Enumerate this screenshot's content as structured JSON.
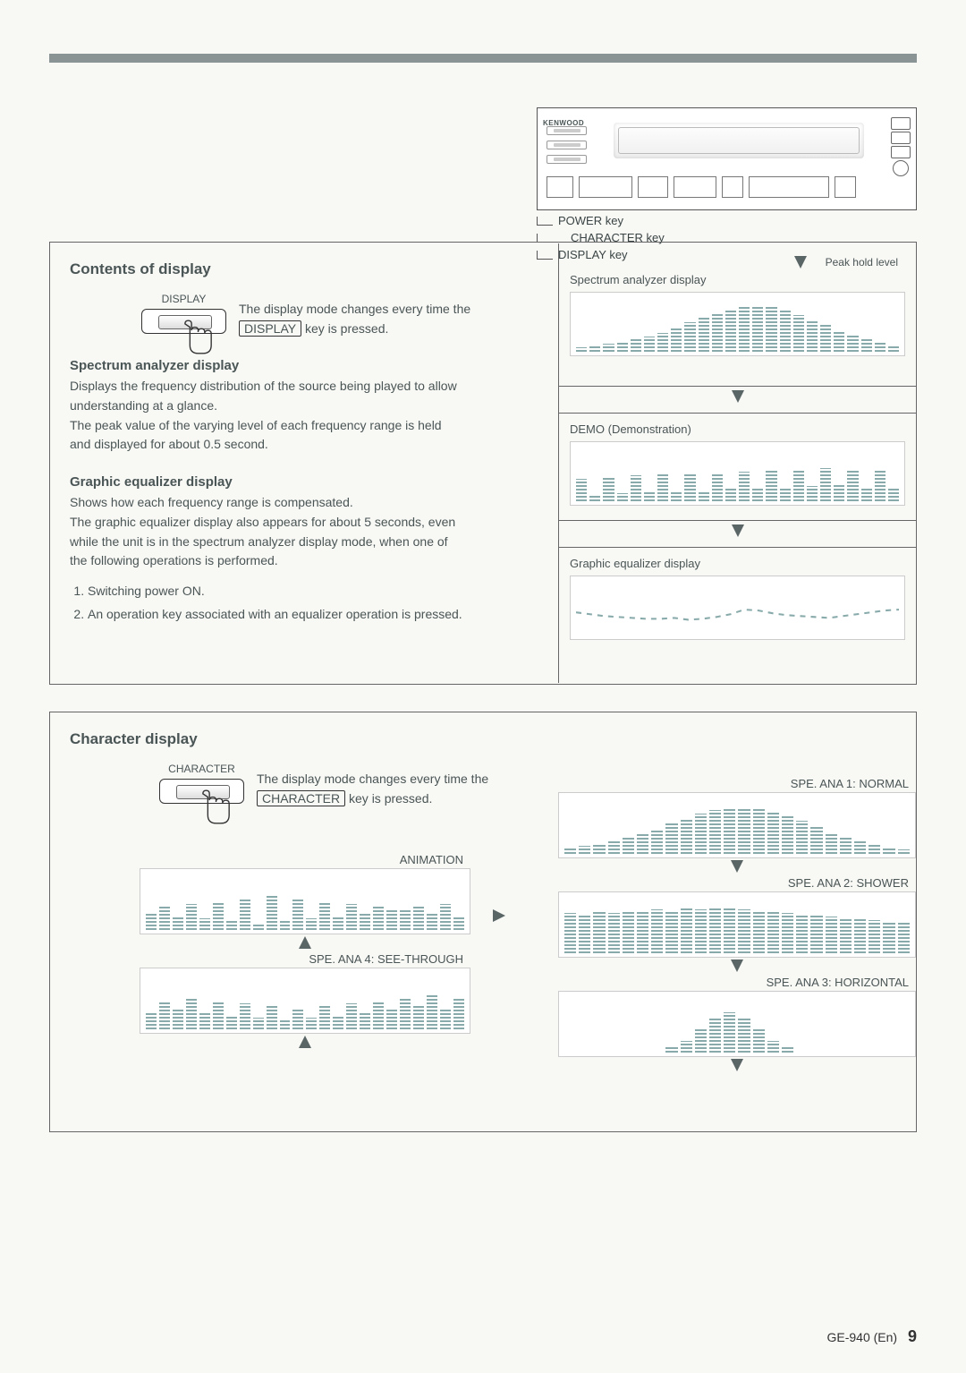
{
  "colors": {
    "rule": "#8a9494",
    "text": "#4a5555",
    "border": "#666666",
    "bar": "#88aaaa"
  },
  "equipment": {
    "brand": "KENWOOD",
    "callouts": [
      "POWER key",
      "CHARACTER key",
      "DISPLAY key"
    ],
    "callout_indents": [
      18,
      32,
      18
    ]
  },
  "contents": {
    "heading": "Contents of display",
    "button_label": "DISPLAY",
    "press_text_prefix": "The display mode changes every time the ",
    "press_key_word": "DISPLAY",
    "press_text_suffix": " key is pressed.",
    "spectrum": {
      "title": "Spectrum analyzer display",
      "body": "Displays the frequency distribution of the source being played to allow understanding at a glance.\nThe peak value of the varying level of each frequency range is held and displayed for about 0.5 second."
    },
    "graphic_eq": {
      "title": "Graphic equalizer display",
      "body": "Shows how each frequency range is compensated.\nThe graphic equalizer display also appears for about 5 seconds, even while the unit is in the spectrum analyzer display mode, when one of the following operations is performed.",
      "list": [
        "Switching power ON.",
        "An operation key associated with an equalizer operation is pressed."
      ]
    },
    "right_panels": {
      "peak_hold_label": "Peak hold level",
      "spectrum_title": "Spectrum analyzer display",
      "demo_title": "DEMO (Demonstration)",
      "eq_title": "Graphic equalizer display",
      "spectrum_bars": [
        8,
        10,
        14,
        18,
        22,
        28,
        34,
        44,
        54,
        62,
        70,
        76,
        80,
        82,
        80,
        74,
        66,
        58,
        48,
        38,
        30,
        22,
        16,
        12
      ],
      "demo_bars": [
        40,
        12,
        44,
        14,
        46,
        16,
        48,
        18,
        50,
        20,
        52,
        22,
        54,
        24,
        56,
        26,
        58,
        28,
        60,
        30,
        58,
        26,
        56,
        22
      ],
      "eq_points": [
        50,
        46,
        42,
        40,
        38,
        36,
        36,
        38,
        34,
        36,
        40,
        46,
        56,
        54,
        48,
        44,
        42,
        40,
        38,
        42,
        46,
        50,
        54,
        56
      ]
    }
  },
  "character": {
    "heading": "Character display",
    "button_label": "CHARACTER",
    "press_text_prefix": "The display mode changes every time the ",
    "press_key_word": "CHARACTER",
    "press_text_suffix": " key is pressed.",
    "left_displays": [
      {
        "label": "ANIMATION",
        "id": "animation",
        "bars": [
          30,
          40,
          25,
          45,
          20,
          50,
          15,
          55,
          10,
          60,
          15,
          55,
          20,
          50,
          25,
          45,
          30,
          40,
          35,
          35,
          40,
          30,
          45,
          25
        ]
      },
      {
        "label": "SPE. ANA 4: SEE-THROUGH",
        "id": "see-through",
        "bars": [
          30,
          50,
          35,
          55,
          30,
          50,
          25,
          45,
          20,
          40,
          15,
          35,
          20,
          40,
          25,
          45,
          30,
          50,
          35,
          55,
          40,
          60,
          35,
          55
        ]
      }
    ],
    "right_displays": [
      {
        "label": "SPE. ANA 1: NORMAL",
        "id": "normal",
        "bars": [
          10,
          14,
          18,
          22,
          28,
          34,
          44,
          54,
          62,
          70,
          76,
          80,
          82,
          80,
          74,
          66,
          58,
          48,
          38,
          30,
          22,
          16,
          12,
          8
        ]
      },
      {
        "label": "SPE. ANA 2: SHOWER",
        "id": "shower",
        "bars": [
          70,
          68,
          72,
          70,
          74,
          72,
          76,
          74,
          78,
          76,
          80,
          78,
          76,
          74,
          72,
          70,
          68,
          66,
          64,
          62,
          60,
          58,
          56,
          54
        ]
      },
      {
        "label": "SPE. ANA 3: HORIZONTAL",
        "id": "horizontal",
        "bars": [
          0,
          0,
          0,
          0,
          0,
          0,
          0,
          10,
          20,
          40,
          60,
          70,
          60,
          40,
          20,
          10,
          0,
          0,
          0,
          0,
          0,
          0,
          0,
          0
        ]
      }
    ]
  },
  "footer": {
    "model": "GE-940 (En)",
    "page": "9"
  }
}
